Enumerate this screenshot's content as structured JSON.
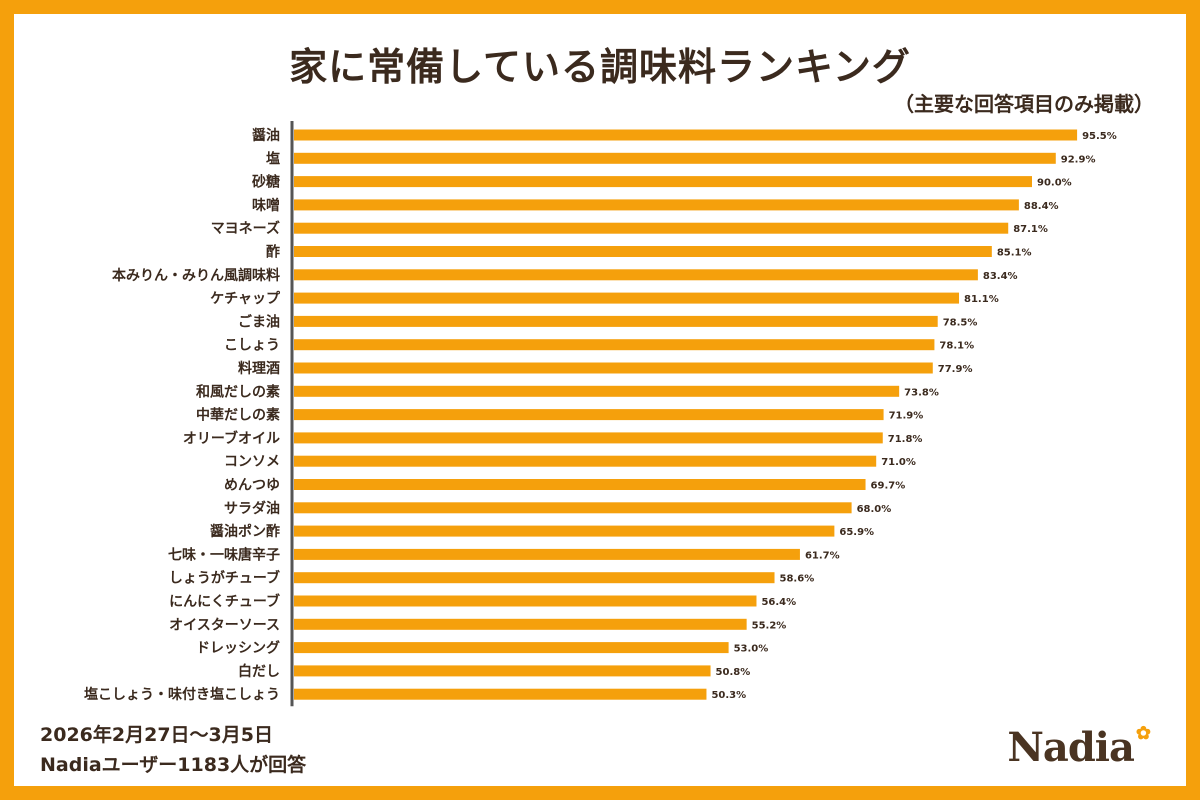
{
  "title": "家に常備している調味料ランキング",
  "subtitle": "（主要な回答項目のみ掲載）",
  "footer": {
    "date_range": "2026年2月27日～3月5日",
    "respondents": "Nadiaユーザー1183人が回答"
  },
  "logo": {
    "text": "Nadia",
    "icon": "flower-icon"
  },
  "colors": {
    "frame": "#f5a00c",
    "bar": "#f5a00c",
    "text": "#3b2a1e",
    "axis": "#555555"
  },
  "chart_data": {
    "type": "bar",
    "orientation": "horizontal",
    "unit": "%",
    "xlim": [
      0,
      100
    ],
    "grid": false,
    "categories": [
      "醤油",
      "塩",
      "砂糖",
      "味噌",
      "マヨネーズ",
      "酢",
      "本みりん・みりん風調味料",
      "ケチャップ",
      "ごま油",
      "こしょう",
      "料理酒",
      "和風だしの素",
      "中華だしの素",
      "オリーブオイル",
      "コンソメ",
      "めんつゆ",
      "サラダ油",
      "醤油ポン酢",
      "七味・一味唐辛子",
      "しょうがチューブ",
      "にんにくチューブ",
      "オイスターソース",
      "ドレッシング",
      "白だし",
      "塩こしょう・味付き塩こしょう"
    ],
    "values": [
      95.5,
      92.9,
      90.0,
      88.4,
      87.1,
      85.1,
      83.4,
      81.1,
      78.5,
      78.1,
      77.9,
      73.8,
      71.9,
      71.8,
      71.0,
      69.7,
      68.0,
      65.9,
      61.7,
      58.6,
      56.4,
      55.2,
      53.0,
      50.8,
      50.3
    ],
    "value_labels": [
      "95.5%",
      "92.9%",
      "90.0%",
      "88.4%",
      "87.1%",
      "85.1%",
      "83.4%",
      "81.1%",
      "78.5%",
      "78.1%",
      "77.9%",
      "73.8%",
      "71.9%",
      "71.8%",
      "71.0%",
      "69.7%",
      "68.0%",
      "65.9%",
      "61.7%",
      "58.6%",
      "56.4%",
      "55.2%",
      "53.0%",
      "50.8%",
      "50.3%"
    ]
  }
}
